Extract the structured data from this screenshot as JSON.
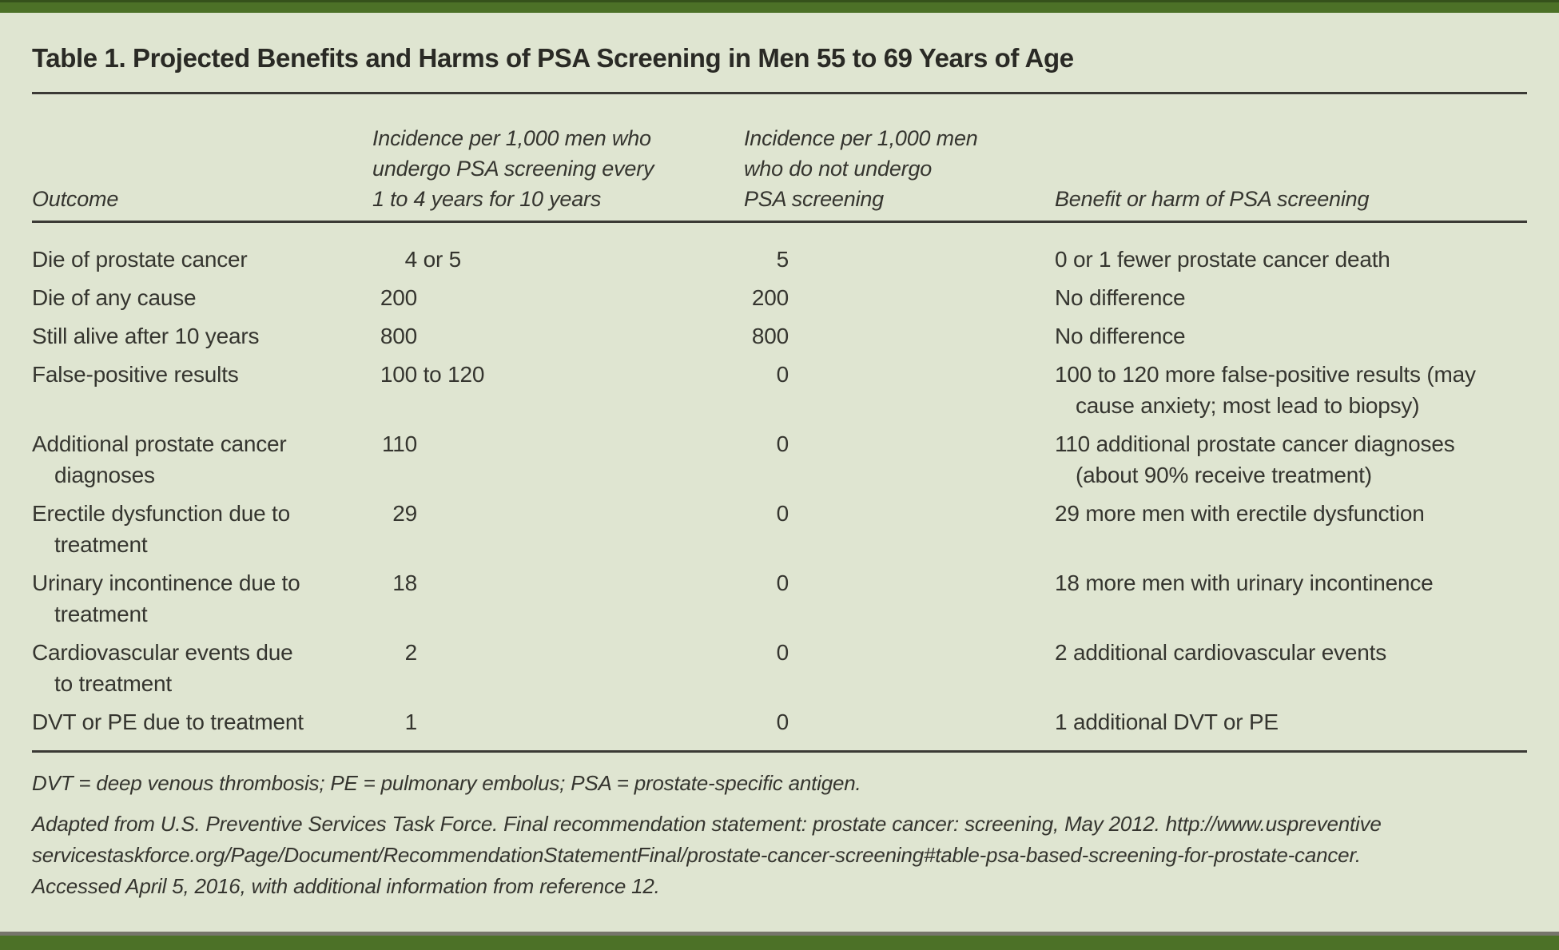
{
  "colors": {
    "page_bg": "#dfe5d1",
    "accent_green": "#4c7127",
    "accent_green_dark": "#35511b",
    "rule_dark": "#3b3a35",
    "bottom_gray": "#76756b",
    "text": "#35352f"
  },
  "table": {
    "title": "Table 1. Projected Benefits and Harms of PSA Screening in Men 55 to 69 Years of Age",
    "columns": [
      {
        "label": "Outcome"
      },
      {
        "label": "Incidence per 1,000 men who\nundergo PSA screening every\n1 to 4 years for 10 years"
      },
      {
        "label": "Incidence per 1,000 men\nwho do not undergo\nPSA screening"
      },
      {
        "label": "Benefit or harm of PSA screening"
      }
    ],
    "rows": [
      {
        "outcome": "Die of prostate cancer",
        "screened": "4 or 5",
        "not_screened": "5",
        "benefit_or_harm": "0 or 1 fewer prostate cancer death"
      },
      {
        "outcome": "Die of any cause",
        "screened": "200",
        "not_screened": "200",
        "benefit_or_harm": "No difference"
      },
      {
        "outcome": "Still alive after 10 years",
        "screened": "800",
        "not_screened": "800",
        "benefit_or_harm": "No difference"
      },
      {
        "outcome": "False-positive results",
        "screened": "100 to 120",
        "not_screened": "0",
        "benefit_or_harm": "100 to 120 more false-positive results (may\ncause anxiety; most lead to biopsy)"
      },
      {
        "outcome": "Additional prostate cancer\ndiagnoses",
        "screened": "110",
        "not_screened": "0",
        "benefit_or_harm": "110 additional prostate cancer diagnoses\n(about 90% receive treatment)"
      },
      {
        "outcome": "Erectile dysfunction due to\ntreatment",
        "screened": "29",
        "not_screened": "0",
        "benefit_or_harm": "29 more men with erectile dysfunction"
      },
      {
        "outcome": "Urinary incontinence due to\ntreatment",
        "screened": "18",
        "not_screened": "0",
        "benefit_or_harm": "18 more men with urinary incontinence"
      },
      {
        "outcome": "Cardiovascular events due\nto treatment",
        "screened": "2",
        "not_screened": "0",
        "benefit_or_harm": "2 additional cardiovascular events"
      },
      {
        "outcome": "DVT or PE due to treatment",
        "screened": "1",
        "not_screened": "0",
        "benefit_or_harm": "1 additional DVT or PE"
      }
    ],
    "footnotes": {
      "abbreviations": "DVT = deep venous thrombosis; PE = pulmonary embolus; PSA = prostate-specific antigen.",
      "source": "Adapted from U.S. Preventive Services Task Force. Final recommendation statement: prostate cancer: screening, May 2012. http://www.uspreventive\nservicestaskforce.org/Page/Document/RecommendationStatementFinal/prostate-cancer-screening#table-psa-based-screening-for-prostate-cancer.\nAccessed April 5, 2016, with additional information from reference 12."
    }
  }
}
